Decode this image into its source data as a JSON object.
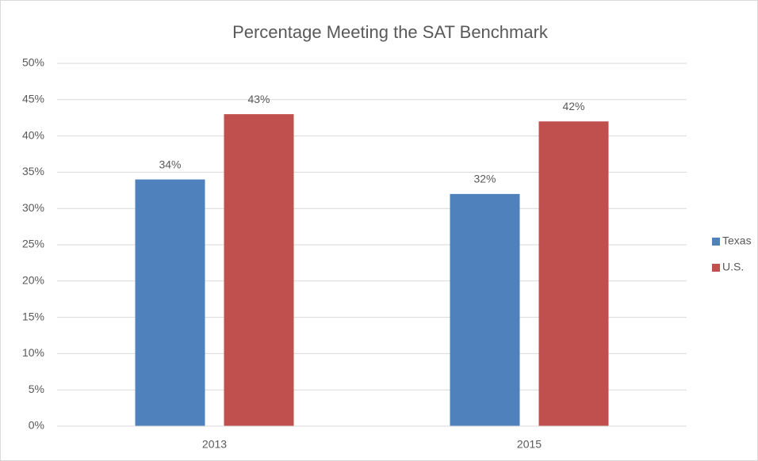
{
  "chart_data": {
    "type": "bar",
    "title": "Percentage Meeting the SAT Benchmark",
    "categories": [
      "2013",
      "2015"
    ],
    "series": [
      {
        "name": "Texas",
        "color": "#4f81bd",
        "values": [
          34,
          32
        ],
        "value_labels": [
          "34%",
          "32%"
        ]
      },
      {
        "name": "U.S.",
        "color": "#c0504d",
        "values": [
          43,
          42
        ],
        "value_labels": [
          "43%",
          "42%"
        ]
      }
    ],
    "ylim": [
      0,
      50
    ],
    "yticks": [
      {
        "value": 0,
        "label": "0%"
      },
      {
        "value": 5,
        "label": "5%"
      },
      {
        "value": 10,
        "label": "10%"
      },
      {
        "value": 15,
        "label": "15%"
      },
      {
        "value": 20,
        "label": "20%"
      },
      {
        "value": 25,
        "label": "25%"
      },
      {
        "value": 30,
        "label": "30%"
      },
      {
        "value": 35,
        "label": "35%"
      },
      {
        "value": 40,
        "label": "40%"
      },
      {
        "value": 45,
        "label": "45%"
      },
      {
        "value": 50,
        "label": "50%"
      }
    ],
    "grid": true,
    "legend": "right"
  }
}
